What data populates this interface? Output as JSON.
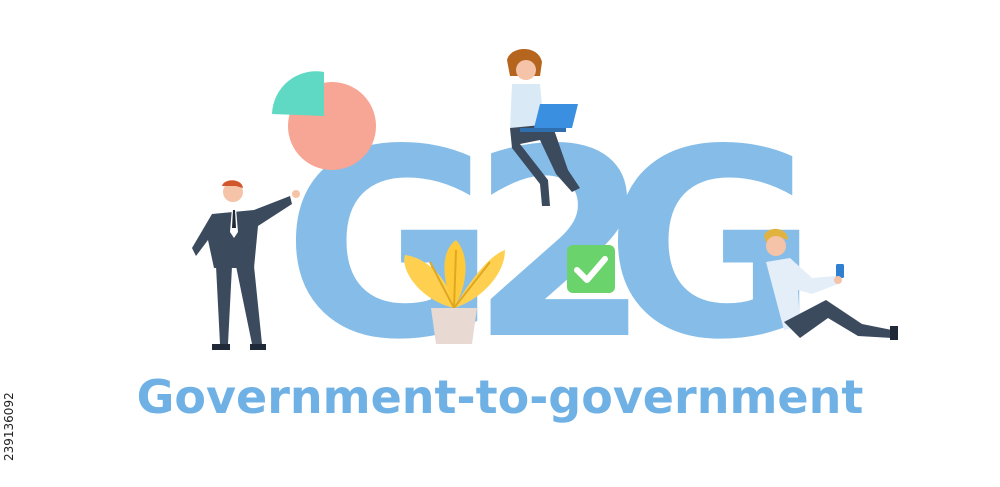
{
  "headline": "G2G",
  "letters": [
    "G",
    "2",
    "G"
  ],
  "caption": "Government-to-government",
  "stock_id": "239136092",
  "colors": {
    "letters": "#85bde8",
    "caption": "#6fb1e4",
    "pie_main": "#f7a594",
    "pie_slice": "#5fd9c4",
    "check_box": "#6bd36b",
    "plant_leaves": "#ffd04f",
    "laptop": "#3b8fe0",
    "suit": "#3c4a5e"
  },
  "icons": [
    "pie-chart-icon",
    "check-mark-icon",
    "plant-icon",
    "laptop-icon",
    "phone-icon"
  ]
}
